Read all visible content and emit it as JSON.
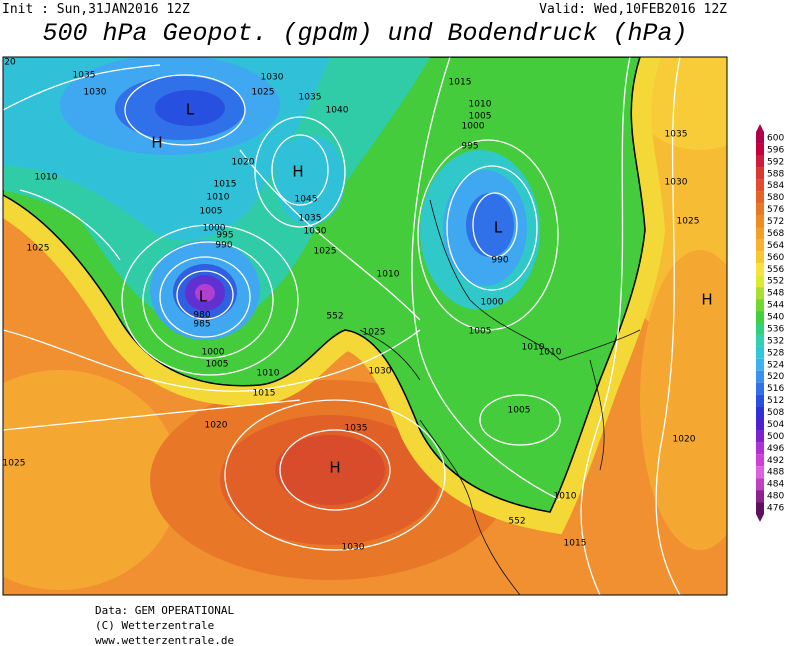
{
  "header": {
    "init": "Init : Sun,31JAN2016 12Z",
    "valid": "Valid: Wed,10FEB2016 12Z",
    "title": "500 hPa Geopot. (gpdm) und Bodendruck (hPa)"
  },
  "colorbar": {
    "items": [
      {
        "value": 600,
        "color": "#b0004a"
      },
      {
        "value": 596,
        "color": "#c4003c"
      },
      {
        "value": 592,
        "color": "#d01c3c"
      },
      {
        "value": 588,
        "color": "#d83830"
      },
      {
        "value": 584,
        "color": "#e04c2c"
      },
      {
        "value": 580,
        "color": "#e46428"
      },
      {
        "value": 576,
        "color": "#e87828"
      },
      {
        "value": 572,
        "color": "#ee8c24"
      },
      {
        "value": 568,
        "color": "#f2a02a"
      },
      {
        "value": 564,
        "color": "#f6b42e"
      },
      {
        "value": 560,
        "color": "#f8c832"
      },
      {
        "value": 556,
        "color": "#fae040"
      },
      {
        "value": 552,
        "color": "#dcea30"
      },
      {
        "value": 548,
        "color": "#a8e030"
      },
      {
        "value": 544,
        "color": "#70d830"
      },
      {
        "value": 540,
        "color": "#40d040"
      },
      {
        "value": 536,
        "color": "#30d080"
      },
      {
        "value": 532,
        "color": "#30d0b0"
      },
      {
        "value": 528,
        "color": "#30c8d8"
      },
      {
        "value": 524,
        "color": "#40b0f0"
      },
      {
        "value": 520,
        "color": "#3c90f0"
      },
      {
        "value": 516,
        "color": "#3070e8"
      },
      {
        "value": 512,
        "color": "#2850e0"
      },
      {
        "value": 508,
        "color": "#3030d8"
      },
      {
        "value": 504,
        "color": "#5020d0"
      },
      {
        "value": 500,
        "color": "#8020d0"
      },
      {
        "value": 496,
        "color": "#b030d8"
      },
      {
        "value": 492,
        "color": "#d040d8"
      },
      {
        "value": 488,
        "color": "#e060e0"
      },
      {
        "value": 484,
        "color": "#c040c0"
      },
      {
        "value": 480,
        "color": "#902090"
      },
      {
        "value": 476,
        "color": "#601060"
      }
    ]
  },
  "map": {
    "contour_labels": [
      "20",
      "1035",
      "1030",
      "1030",
      "1025",
      "1035",
      "1040",
      "1015",
      "1010",
      "1005",
      "1000",
      "995",
      "1010",
      "1020",
      "1015",
      "1010",
      "1005",
      "1000",
      "995",
      "990",
      "1045",
      "1035",
      "1030",
      "1025",
      "1035",
      "1030",
      "1025",
      "1025",
      "1010",
      "990",
      "1000",
      "980",
      "985",
      "552",
      "1025",
      "1005",
      "1010",
      "1010",
      "1000",
      "1005",
      "1030",
      "1010",
      "1015",
      "1005",
      "1020",
      "1035",
      "1020",
      "1025",
      "1010",
      "552",
      "1015",
      "1030"
    ],
    "pressure_centers": [
      "L",
      "H",
      "H",
      "L",
      "L",
      "H",
      "H"
    ]
  },
  "footer": {
    "lines": [
      "Data: GEM OPERATIONAL",
      "(C) Wetterzentrale",
      "www.wetterzentrale.de"
    ]
  }
}
